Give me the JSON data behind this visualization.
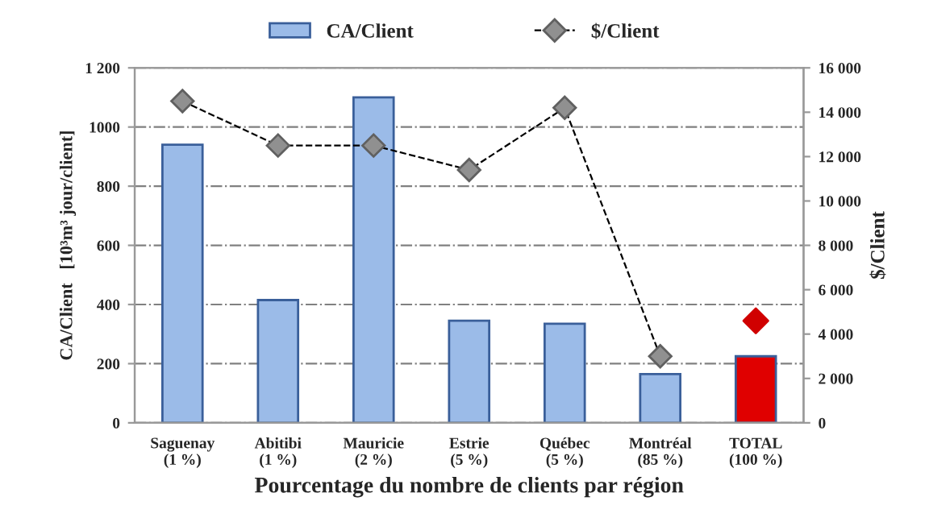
{
  "chart_data": {
    "type": "bar",
    "xlabel": "Pourcentage du nombre de clients par région",
    "ylabel": "CA/Client   [10³m³ jour/client]",
    "y2label": "$/Client",
    "categories": [
      "Saguenay\n(1 %)",
      "Abitibi\n(1 %)",
      "Mauricie\n(2 %)",
      "Estrie\n(5 %)",
      "Québec\n(5 %)",
      "Montréal\n(85 %)",
      "TOTAL\n(100 %)"
    ],
    "series": [
      {
        "name": "CA/Client",
        "color": "#9bbbe8",
        "colors": [
          "#9bbbe8",
          "#9bbbe8",
          "#9bbbe8",
          "#9bbbe8",
          "#9bbbe8",
          "#9bbbe8",
          "#e00000"
        ],
        "values": [
          940,
          415,
          1100,
          345,
          335,
          165,
          225
        ]
      },
      {
        "name": "$/Client",
        "type": "line",
        "axis": "y2",
        "color": "#909090",
        "values": [
          14500,
          12500,
          12500,
          11400,
          14200,
          3000,
          null
        ]
      },
      {
        "type": "scatter",
        "axis": "y2",
        "color": "#d00000",
        "values": [
          null,
          null,
          null,
          null,
          null,
          null,
          4600
        ]
      }
    ],
    "ylim": [
      0,
      1200
    ],
    "yticks": [
      0,
      200,
      400,
      600,
      800,
      1000,
      {
        "value": 1200,
        "label": "1 200"
      }
    ],
    "y2lim": [
      0,
      16000
    ],
    "y2ticks": [
      0,
      {
        "value": 2000,
        "label": "2 000"
      },
      {
        "value": 4000,
        "label": "4 000"
      },
      {
        "value": 6000,
        "label": "6 000"
      },
      {
        "value": 8000,
        "label": "8 000"
      },
      {
        "value": 10000,
        "label": "10 000"
      },
      {
        "value": 12000,
        "label": "12 000"
      },
      {
        "value": 14000,
        "label": "14 000"
      },
      {
        "value": 16000,
        "label": "16 000"
      }
    ],
    "grid": "y",
    "legend": "top",
    "marker": "diamond",
    "line_style": "dashed"
  }
}
